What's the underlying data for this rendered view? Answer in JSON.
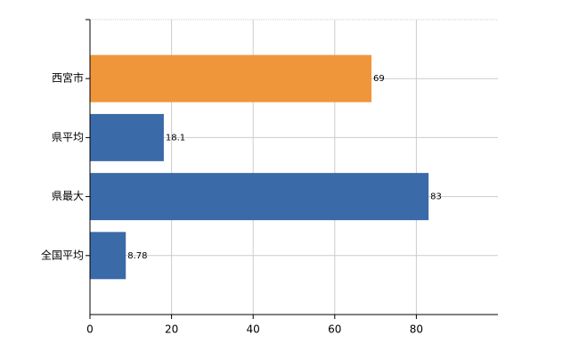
{
  "chart_data": {
    "type": "hbar",
    "categories": [
      "西宮市",
      "県平均",
      "県最大",
      "全国平均"
    ],
    "values": [
      69,
      18.1,
      83,
      8.78
    ],
    "colors": [
      "#f0963a",
      "#3b6aa8",
      "#3b6aa8",
      "#3b6aa8"
    ],
    "xlim": [
      0,
      100
    ],
    "xticks": [
      0,
      20,
      40,
      60,
      80
    ],
    "grid": true
  }
}
